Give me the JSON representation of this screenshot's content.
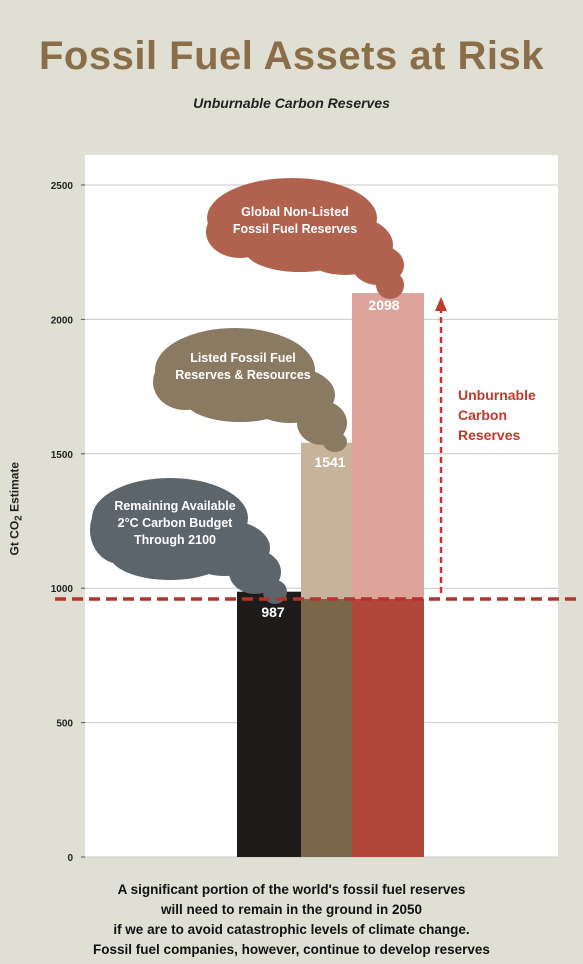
{
  "header": {
    "title": "Fossil Fuel Assets at Risk",
    "subtitle": "Unburnable Carbon Reserves"
  },
  "caption": {
    "lines": [
      "A significant portion of the world's fossil fuel reserves",
      "will need to remain in the ground in 2050",
      "if we are to avoid catastrophic levels of climate change.",
      "Fossil fuel companies, however, continue to develop reserves"
    ]
  },
  "chart_data": {
    "type": "bar",
    "ylabel": "Gt CO2 Estimate",
    "ylim": [
      0,
      2500
    ],
    "yticks": [
      0,
      500,
      1000,
      1500,
      2000,
      2500
    ],
    "grid": true,
    "categories": [
      "Remaining Available 2°C Carbon Budget Through 2100",
      "Listed Fossil Fuel Reserves & Resources",
      "Global Non-Listed Fossil Fuel Reserves"
    ],
    "values": [
      987,
      1541,
      2098
    ],
    "value_labels": [
      "987",
      "1541",
      "2098"
    ],
    "cloud_labels": [
      [
        "Remaining Available",
        "2°C Carbon Budget",
        "Through 2100"
      ],
      [
        "Listed Fossil Fuel",
        "Reserves & Resources"
      ],
      [
        "Global Non-Listed",
        "Fossil Fuel Reserves"
      ]
    ],
    "colors": {
      "bars_below": [
        "#1e1b1b",
        "#7a6648",
        "#b1463a"
      ],
      "bars_above": [
        "#1e1b1b",
        "#c7b39c",
        "#dca49b"
      ],
      "clouds": [
        "#5c646c",
        "#8a7a62",
        "#b0624f"
      ],
      "budget_line": "#b5332a",
      "annotation": "#c0392b"
    },
    "budget_line": 960,
    "annotation": {
      "label": [
        "Unburnable",
        "Carbon",
        "Reserves"
      ]
    }
  }
}
